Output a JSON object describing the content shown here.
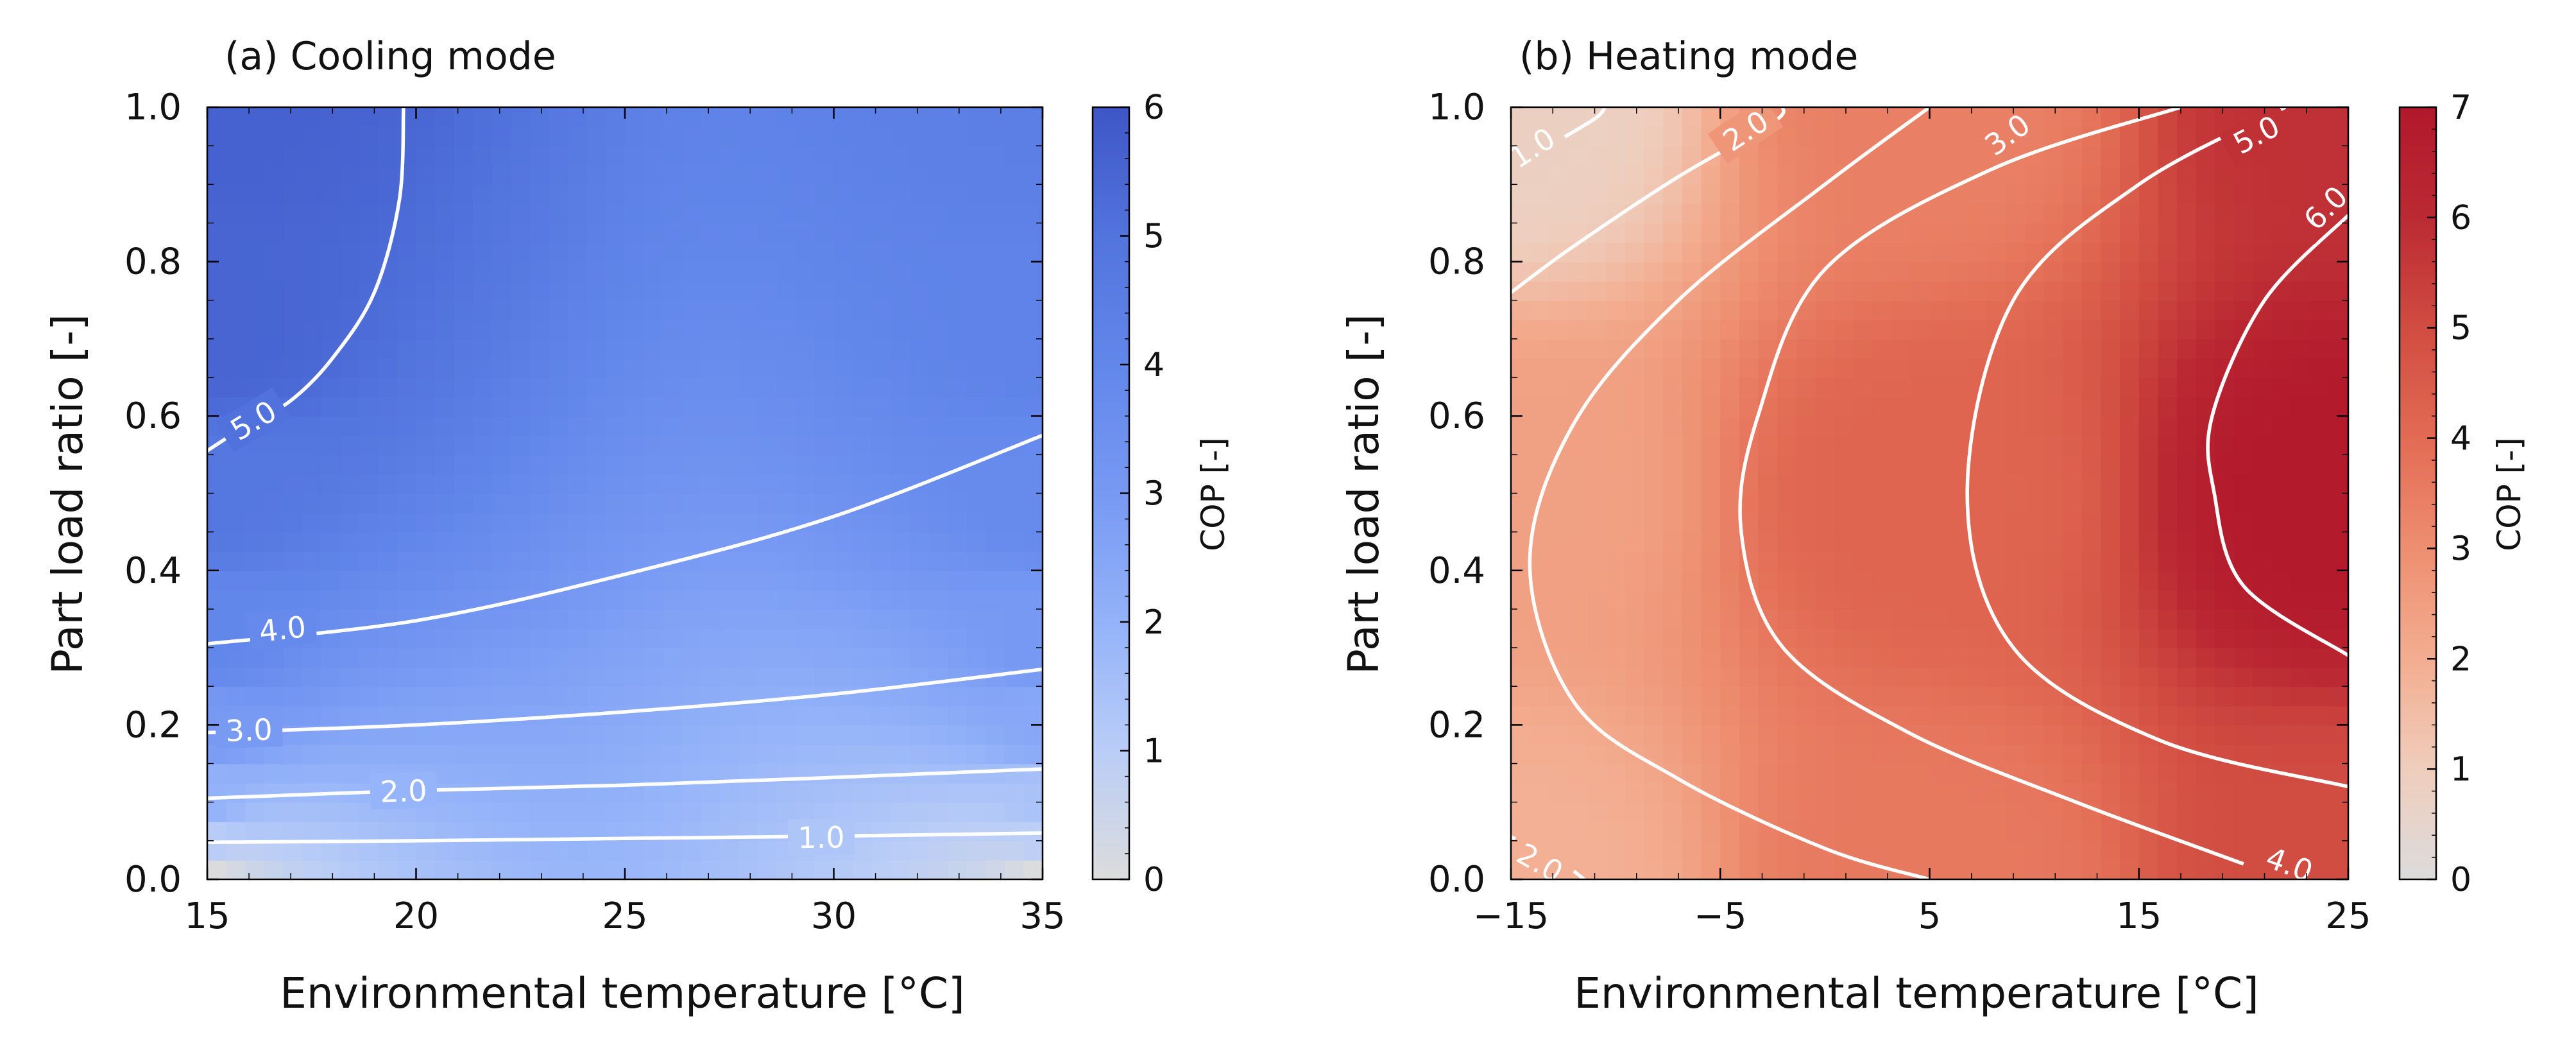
{
  "chart_data": [
    {
      "type": "heatmap",
      "title": "(a) Cooling mode",
      "xlabel": "Environmental temperature [$^{\\circ}$C]",
      "xlabel_display": "Environmental temperature [°C]",
      "ylabel": "Part load ratio [-]",
      "xlim": [
        15,
        35
      ],
      "ylim": [
        0.0,
        1.0
      ],
      "xticks": [
        "15",
        "20",
        "25",
        "30",
        "35"
      ],
      "yticks": [
        "0.0",
        "0.2",
        "0.4",
        "0.6",
        "0.8",
        "1.0"
      ],
      "colorbar": {
        "label": "COP [-]",
        "range": [
          0,
          6
        ],
        "ticks": [
          "0",
          "1",
          "2",
          "3",
          "4",
          "5",
          "6"
        ],
        "colors": [
          "#dcdcdc",
          "#b9cdf7",
          "#93b2f9",
          "#7799f3",
          "#6287eb",
          "#5274dd",
          "#3e56c7"
        ]
      },
      "field": [
        [
          15,
          0.0,
          0.0
        ],
        [
          35,
          0.0,
          0.0
        ],
        [
          15,
          0.05,
          1.0
        ],
        [
          35,
          0.05,
          0.9
        ],
        [
          15,
          0.1,
          2.0
        ],
        [
          35,
          0.1,
          1.4
        ],
        [
          15,
          0.2,
          3.0
        ],
        [
          35,
          0.2,
          2.4
        ],
        [
          15,
          0.3,
          4.0
        ],
        [
          35,
          0.3,
          3.0
        ],
        [
          15,
          0.5,
          4.8
        ],
        [
          35,
          0.5,
          3.8
        ],
        [
          15,
          0.7,
          5.5
        ],
        [
          35,
          0.7,
          4.2
        ],
        [
          15,
          1.0,
          5.6
        ],
        [
          35,
          1.0,
          4.4
        ]
      ],
      "contours": [
        {
          "level": "1.0",
          "points": [
            [
              15,
              0.048
            ],
            [
              20,
              0.05
            ],
            [
              25,
              0.053
            ],
            [
              30,
              0.056
            ],
            [
              35,
              0.06
            ]
          ],
          "label_at": [
            29.7,
            0.055
          ]
        },
        {
          "level": "2.0",
          "points": [
            [
              15,
              0.105
            ],
            [
              20,
              0.115
            ],
            [
              25,
              0.122
            ],
            [
              30,
              0.132
            ],
            [
              35,
              0.143
            ]
          ],
          "label_at": [
            19.7,
            0.115
          ]
        },
        {
          "level": "3.0",
          "points": [
            [
              15,
              0.19
            ],
            [
              20,
              0.2
            ],
            [
              25,
              0.217
            ],
            [
              30,
              0.24
            ],
            [
              35,
              0.272
            ]
          ],
          "label_at": [
            16.0,
            0.194
          ]
        },
        {
          "level": "4.0",
          "points": [
            [
              15,
              0.305
            ],
            [
              20,
              0.335
            ],
            [
              25,
              0.395
            ],
            [
              30,
              0.47
            ],
            [
              35,
              0.575
            ]
          ],
          "label_at": [
            16.8,
            0.325
          ]
        },
        {
          "level": "5.0",
          "points": [
            [
              15,
              0.555
            ],
            [
              16,
              0.59
            ],
            [
              17,
              0.62
            ],
            [
              18,
              0.675
            ],
            [
              19,
              0.76
            ],
            [
              19.6,
              0.88
            ],
            [
              19.7,
              1.0
            ]
          ],
          "label_at": [
            16.1,
            0.595
          ]
        }
      ]
    },
    {
      "type": "heatmap",
      "title": "(b) Heating mode",
      "xlabel": "Environmental temperature [$^{\\circ}$C]",
      "xlabel_display": "Environmental temperature [°C]",
      "ylabel": "Part load ratio [-]",
      "xlim": [
        -15,
        25
      ],
      "ylim": [
        0.0,
        1.0
      ],
      "xticks": [
        "−15",
        "−5",
        "5",
        "15",
        "25"
      ],
      "yticks": [
        "0.0",
        "0.2",
        "0.4",
        "0.6",
        "0.8",
        "1.0"
      ],
      "colorbar": {
        "label": "COP [-]",
        "range": [
          0,
          7
        ],
        "ticks": [
          "0",
          "1",
          "2",
          "3",
          "4",
          "5",
          "6",
          "7"
        ],
        "colors": [
          "#dcdcdc",
          "#efcdbc",
          "#f3ad90",
          "#ee8e70",
          "#e26b54",
          "#d14c41",
          "#bb2a33",
          "#b2182b"
        ]
      },
      "field": [
        [
          -15,
          1.0,
          0.8
        ],
        [
          -15,
          0.5,
          2.4
        ],
        [
          -15,
          0.0,
          1.9
        ],
        [
          5,
          1.0,
          3.4
        ],
        [
          5,
          0.5,
          4.2
        ],
        [
          5,
          0.0,
          3.6
        ],
        [
          25,
          1.0,
          5.8
        ],
        [
          25,
          0.5,
          6.9
        ],
        [
          25,
          0.0,
          5.0
        ]
      ],
      "contours": [
        {
          "level": "1.0",
          "points": [
            [
              -15,
              0.915
            ],
            [
              -13,
              0.952
            ],
            [
              -11,
              0.985
            ],
            [
              -10.5,
              1.0
            ]
          ],
          "label_at": [
            -14.0,
            0.948
          ]
        },
        {
          "level": "2.0",
          "points": [
            [
              -15,
              0.76
            ],
            [
              -12,
              0.82
            ],
            [
              -7,
              0.91
            ],
            [
              -2.5,
              0.98
            ],
            [
              -2,
              1.0
            ]
          ],
          "label_at": [
            -3.8,
            0.97
          ]
        },
        {
          "level": "2.0",
          "points": [
            [
              -15,
              0.055
            ],
            [
              -13,
              0.03
            ],
            [
              -11.5,
              0.0
            ]
          ],
          "label_at": [
            -13.6,
            0.022
          ]
        },
        {
          "level": "3.0",
          "points": [
            [
              5,
              1.0
            ],
            [
              0,
              0.9
            ],
            [
              -7,
              0.75
            ],
            [
              -12,
              0.59
            ],
            [
              -14.1,
              0.41
            ],
            [
              -12,
              0.23
            ],
            [
              -7,
              0.13
            ],
            [
              0,
              0.04
            ],
            [
              5,
              0.0
            ]
          ],
          "label_at": [
            8.7,
            0.965
          ]
        },
        {
          "level": "4.0",
          "points": [
            [
              17,
              1.0
            ],
            [
              8,
              0.92
            ],
            [
              0,
              0.79
            ],
            [
              -3.2,
              0.6
            ],
            [
              -4,
              0.45
            ],
            [
              -2,
              0.3
            ],
            [
              4,
              0.19
            ],
            [
              12,
              0.1
            ],
            [
              20,
              0.02
            ]
          ],
          "label_at": [
            22.2,
            0.02
          ]
        },
        {
          "level": "5.0",
          "points": [
            [
              22,
              1.0
            ],
            [
              15,
              0.9
            ],
            [
              9,
              0.75
            ],
            [
              6.8,
              0.5
            ],
            [
              9,
              0.3
            ],
            [
              16,
              0.18
            ],
            [
              25,
              0.12
            ]
          ],
          "label_at": [
            20.6,
            0.965
          ]
        },
        {
          "level": "6.0",
          "points": [
            [
              25,
              0.86
            ],
            [
              21,
              0.75
            ],
            [
              18.5,
              0.6
            ],
            [
              18.6,
              0.5
            ],
            [
              20,
              0.38
            ],
            [
              25,
              0.29
            ]
          ],
          "label_at": [
            23.9,
            0.87
          ]
        }
      ]
    }
  ]
}
